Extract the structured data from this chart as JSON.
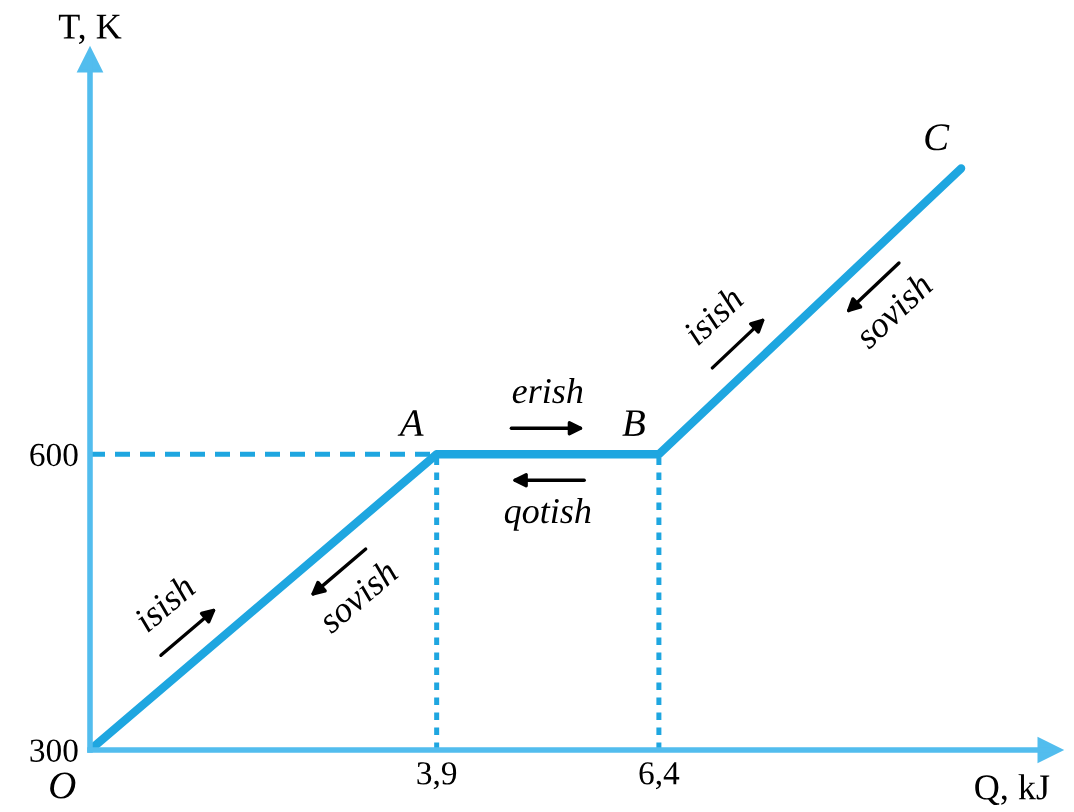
{
  "chart_data": {
    "type": "line",
    "xlabel": "Q, kJ",
    "ylabel": "T, K",
    "x": [
      0,
      3.9,
      6.4,
      9.8
    ],
    "series": [
      {
        "color": "#1ea6e0",
        "values": [
          300,
          600,
          600,
          890
        ]
      }
    ],
    "xlim": [
      0,
      10.8
    ],
    "ylim": [
      300,
      1000
    ],
    "xticks": [
      {
        "value": 3.9,
        "label": "3,9"
      },
      {
        "value": 6.4,
        "label": "6,4"
      }
    ],
    "yticks": [
      300,
      600
    ],
    "ref_lines": [
      {
        "axis": "y",
        "value": 600,
        "color": "#1ea6e0",
        "line_style": "dashed"
      },
      {
        "axis": "x",
        "value": 3.9,
        "color": "#1ea6e0",
        "line_style": "dotted"
      },
      {
        "axis": "x",
        "value": 6.4,
        "color": "#1ea6e0",
        "line_style": "dotted"
      }
    ],
    "annotations": [
      {
        "text": "O",
        "x": 0,
        "y": 300
      },
      {
        "text": "A",
        "x": 3.9,
        "y": 600
      },
      {
        "text": "B",
        "x": 6.4,
        "y": 600
      },
      {
        "text": "C",
        "x": 9.8,
        "y": 890
      },
      {
        "text": "isish",
        "x": 1.3,
        "y": 400
      },
      {
        "text": "sovish",
        "x": 2.6,
        "y": 500
      },
      {
        "text": "erish",
        "x": 5.15,
        "y": 600
      },
      {
        "text": "qotish",
        "x": 5.15,
        "y": 600
      },
      {
        "text": "isish",
        "x": 7.5,
        "y": 694
      },
      {
        "text": "sovish",
        "x": 8.6,
        "y": 788
      }
    ],
    "grid": false,
    "legend": false,
    "marker": "none",
    "line_style": "solid"
  }
}
